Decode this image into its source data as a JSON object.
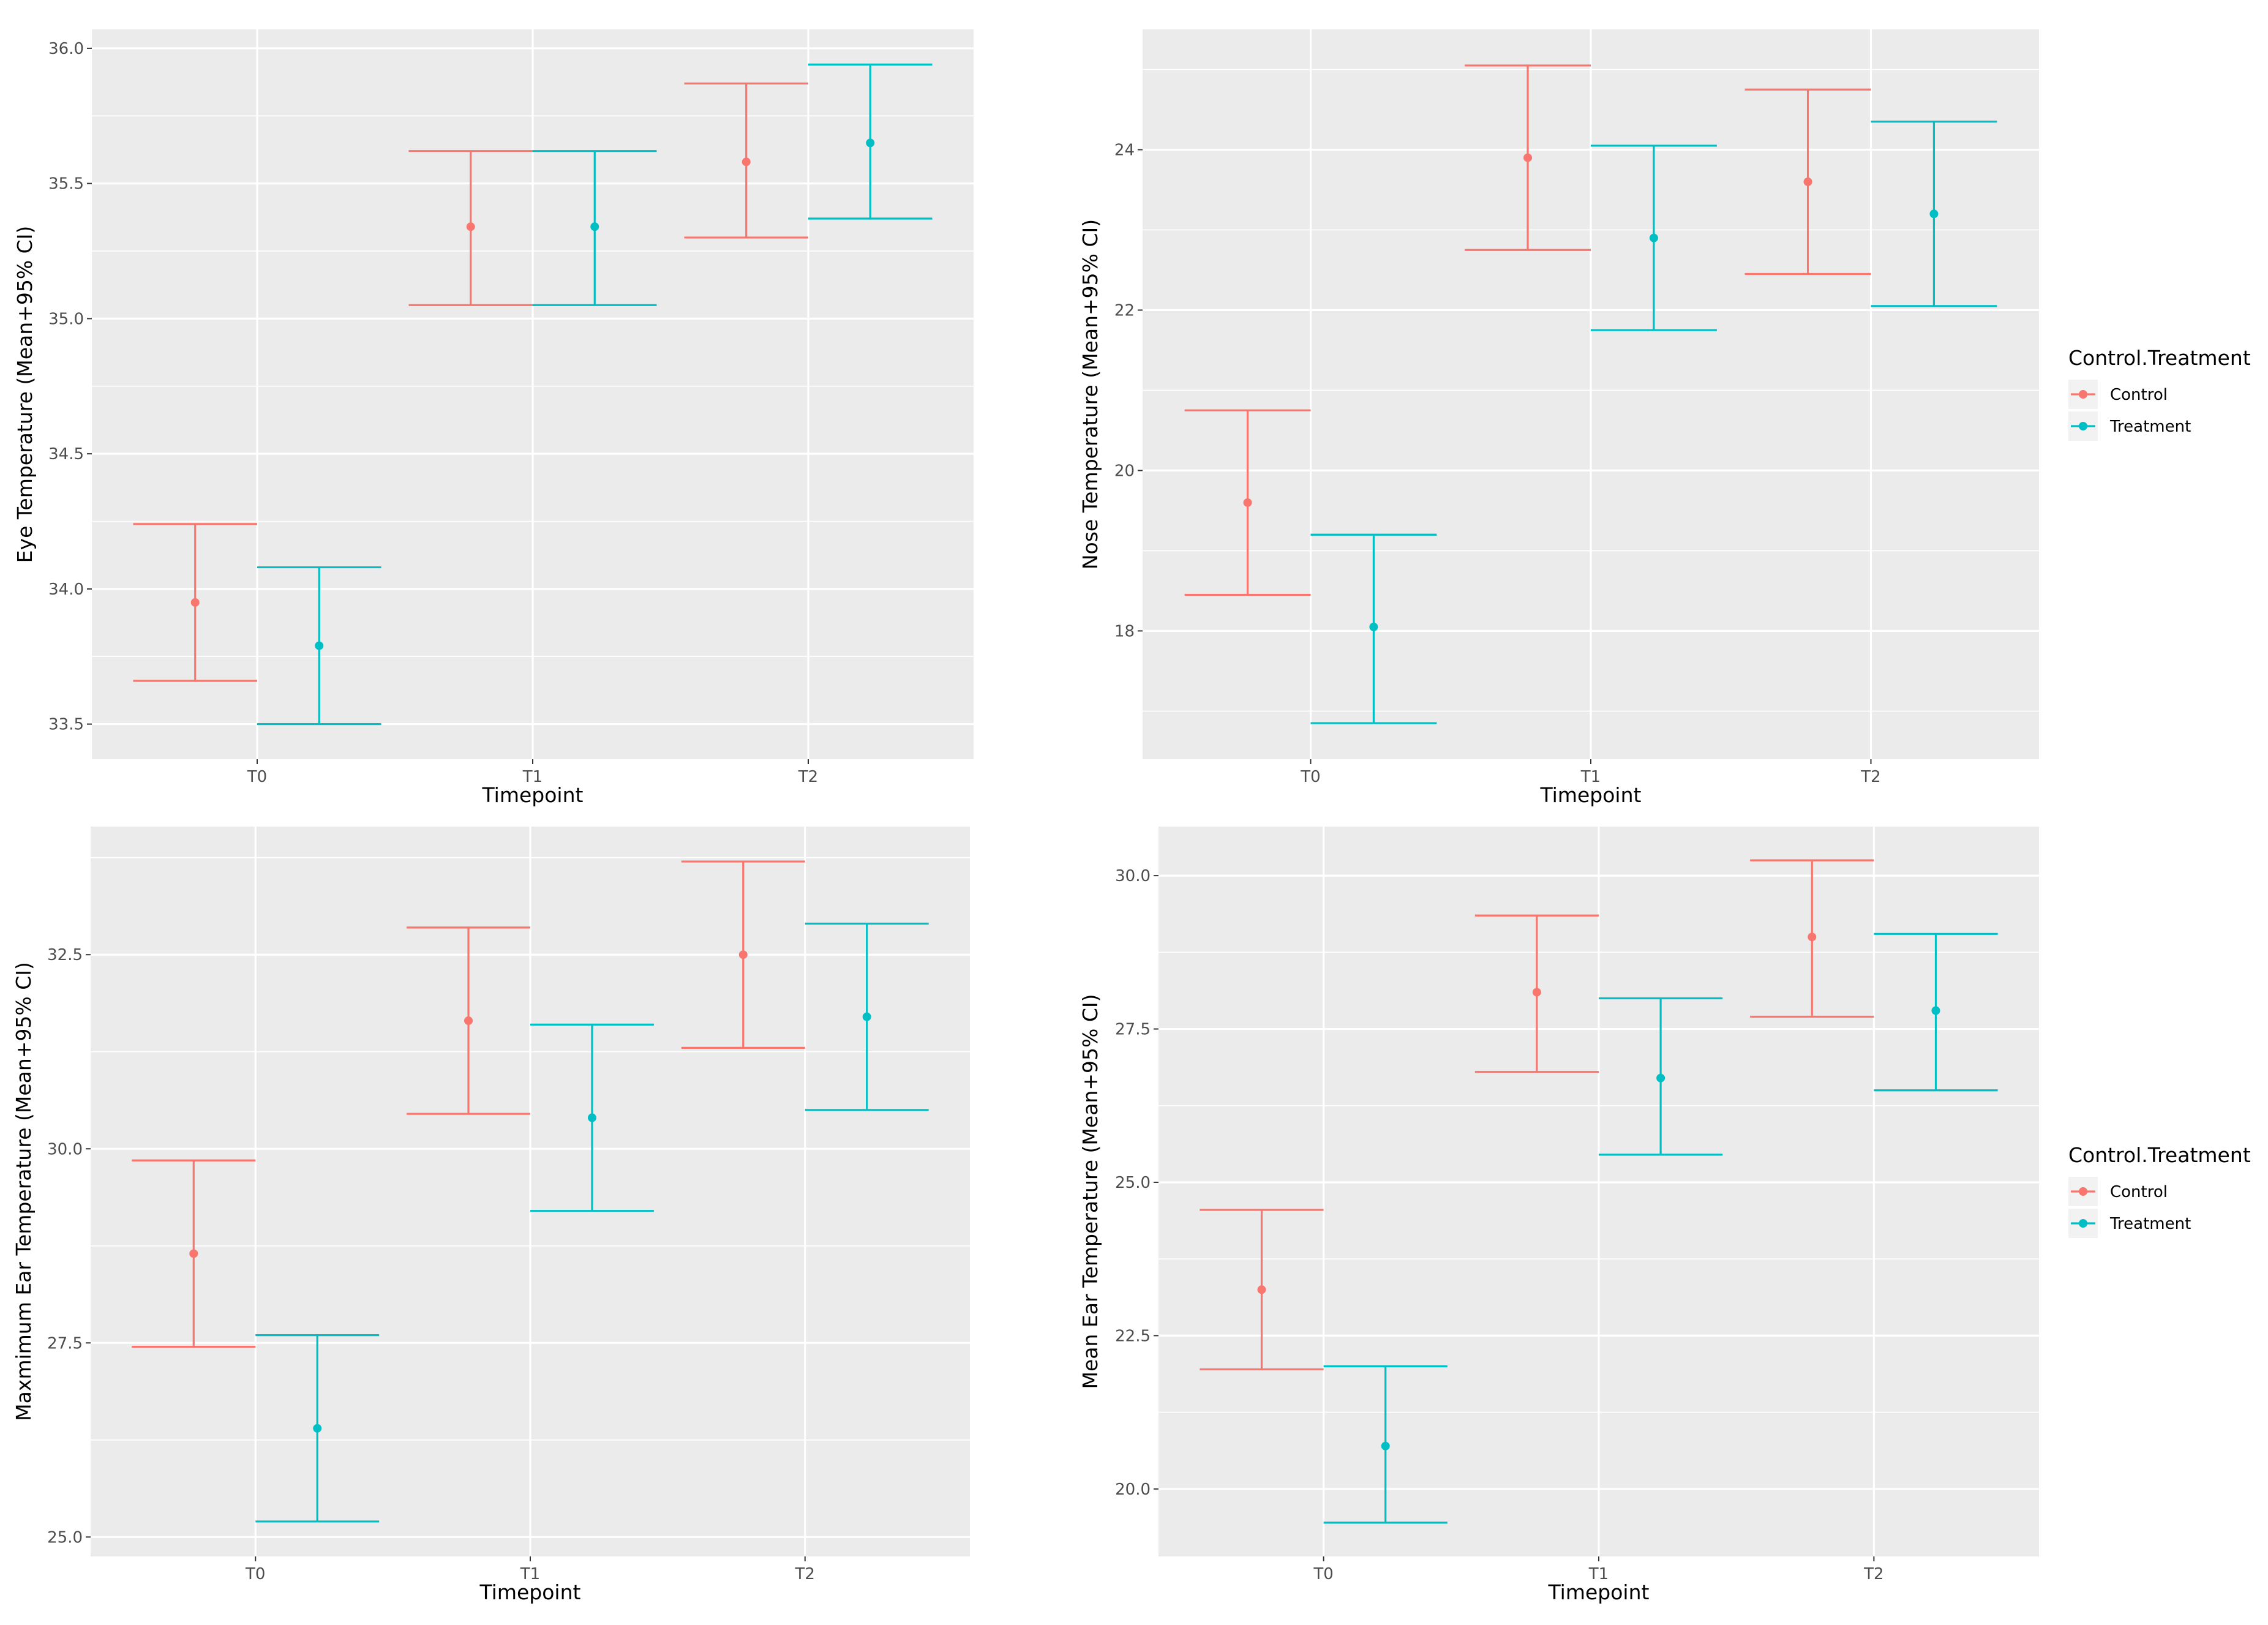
{
  "chart_data": [
    {
      "type": "errorbar",
      "title": "",
      "xlabel": "Timepoint",
      "ylabel": "Eye Temperature (Mean+95% CI)",
      "categories": [
        "T0",
        "T1",
        "T2"
      ],
      "ylim": [
        33.37,
        36.07
      ],
      "yticks": [
        "33.5",
        "34.0",
        "34.5",
        "35.0",
        "35.5",
        "36.0"
      ],
      "series": [
        {
          "name": "Control",
          "mean": [
            33.95,
            35.34,
            35.58
          ],
          "lower": [
            33.66,
            35.05,
            35.3
          ],
          "upper": [
            34.24,
            35.62,
            35.87
          ]
        },
        {
          "name": "Treatment",
          "mean": [
            33.79,
            35.34,
            35.65
          ],
          "lower": [
            33.5,
            35.05,
            35.37
          ],
          "upper": [
            34.08,
            35.62,
            35.94
          ]
        }
      ]
    },
    {
      "type": "errorbar",
      "title": "",
      "xlabel": "Timepoint",
      "ylabel": "Nose Temperature (Mean+95% CI)",
      "categories": [
        "T0",
        "T1",
        "T2"
      ],
      "ylim": [
        16.4,
        25.5
      ],
      "yticks": [
        "18",
        "20",
        "22",
        "24"
      ],
      "series": [
        {
          "name": "Control",
          "mean": [
            19.6,
            23.9,
            23.6
          ],
          "lower": [
            18.45,
            22.75,
            22.45
          ],
          "upper": [
            20.75,
            25.05,
            24.75
          ]
        },
        {
          "name": "Treatment",
          "mean": [
            18.05,
            22.9,
            23.2
          ],
          "lower": [
            16.85,
            21.75,
            22.05
          ],
          "upper": [
            19.2,
            24.05,
            24.35
          ]
        }
      ]
    },
    {
      "type": "errorbar",
      "title": "",
      "xlabel": "Timepoint",
      "ylabel": "Maxmimum Ear Temperature (Mean+95% CI)",
      "categories": [
        "T0",
        "T1",
        "T2"
      ],
      "ylim": [
        24.75,
        34.15
      ],
      "yticks": [
        "25.0",
        "27.5",
        "30.0",
        "32.5"
      ],
      "series": [
        {
          "name": "Control",
          "mean": [
            28.65,
            31.65,
            32.5
          ],
          "lower": [
            27.45,
            30.45,
            31.3
          ],
          "upper": [
            29.85,
            32.85,
            33.7
          ]
        },
        {
          "name": "Treatment",
          "mean": [
            26.4,
            30.4,
            31.7
          ],
          "lower": [
            25.2,
            29.2,
            30.5
          ],
          "upper": [
            27.6,
            31.6,
            32.9
          ]
        }
      ]
    },
    {
      "type": "errorbar",
      "title": "",
      "xlabel": "Timepoint",
      "ylabel": "Mean Ear Temperature (Mean+95% CI)",
      "categories": [
        "T0",
        "T1",
        "T2"
      ],
      "ylim": [
        18.9,
        30.8
      ],
      "yticks": [
        "20.0",
        "22.5",
        "25.0",
        "27.5",
        "30.0"
      ],
      "series": [
        {
          "name": "Control",
          "mean": [
            23.25,
            28.1,
            29.0
          ],
          "lower": [
            21.95,
            26.8,
            27.7
          ],
          "upper": [
            24.55,
            29.35,
            30.25
          ]
        },
        {
          "name": "Treatment",
          "mean": [
            20.7,
            26.7,
            27.8
          ],
          "lower": [
            19.45,
            25.45,
            26.5
          ],
          "upper": [
            22.0,
            28.0,
            29.05
          ]
        }
      ]
    }
  ],
  "legends": [
    {
      "title": "Control.Treatment",
      "items": [
        "Control",
        "Treatment"
      ]
    },
    {
      "title": "Control.Treatment",
      "items": [
        "Control",
        "Treatment"
      ]
    }
  ],
  "colors": {
    "Control": "#F8766D",
    "Treatment": "#00BFC4",
    "panel": "#EBEBEB",
    "grid": "#FFFFFF"
  }
}
